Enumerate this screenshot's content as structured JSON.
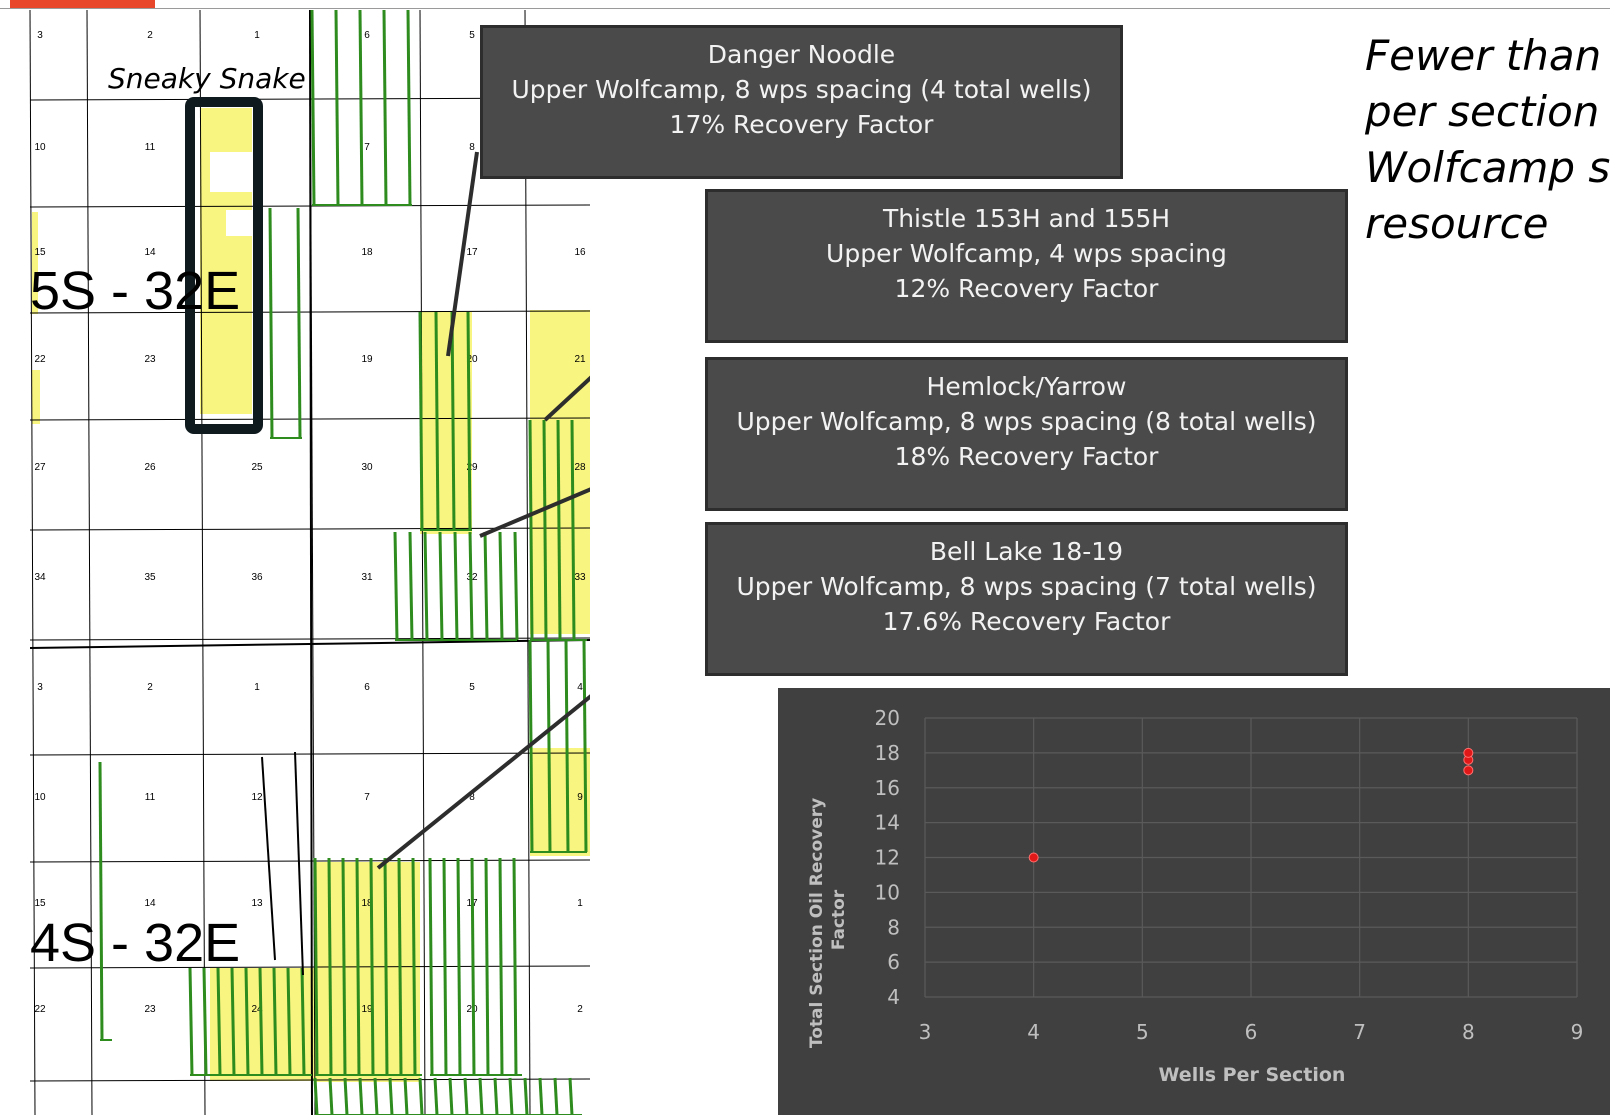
{
  "header": {
    "accent_color": "#e8472b"
  },
  "map": {
    "annotation_label": "Sneaky Snake",
    "township_upper": "5S - 32E",
    "township_lower": "4S - 32E",
    "section_numbers_upper": [
      "3",
      "2",
      "1",
      "6",
      "5",
      "10",
      "11",
      "7",
      "8",
      "15",
      "14",
      "18",
      "17",
      "16",
      "22",
      "23",
      "19",
      "20",
      "21",
      "27",
      "26",
      "25",
      "30",
      "29",
      "28",
      "34",
      "35",
      "36",
      "31",
      "32",
      "33"
    ],
    "section_numbers_lower": [
      "3",
      "2",
      "1",
      "6",
      "5",
      "4",
      "10",
      "11",
      "12",
      "7",
      "8",
      "9",
      "15",
      "14",
      "13",
      "18",
      "17",
      "1",
      "22",
      "23",
      "24",
      "19",
      "20",
      "2"
    ],
    "colors": {
      "well_line": "#2e8b1e",
      "highlight": "#f8f580",
      "highlight_box": "#0f1a1e"
    }
  },
  "callouts": [
    {
      "title": "Danger Noodle",
      "line2": "Upper Wolfcamp, 8 wps spacing (4 total wells)",
      "line3": "17% Recovery Factor"
    },
    {
      "title": "Thistle 153H and 155H",
      "line2": "Upper Wolfcamp, 4 wps spacing",
      "line3": "12% Recovery Factor"
    },
    {
      "title": "Hemlock/Yarrow",
      "line2": "Upper Wolfcamp, 8 wps spacing (8 total wells)",
      "line3": "18% Recovery Factor"
    },
    {
      "title": "Bell Lake 18-19",
      "line2": "Upper Wolfcamp, 8 wps spacing (7 total wells)",
      "line3": "17.6% Recovery Factor"
    }
  ],
  "headline": {
    "lines": [
      "Fewer than",
      "per section i",
      "Wolfcamp s",
      "resource"
    ]
  },
  "chart_data": {
    "type": "scatter",
    "title": "",
    "xlabel": "Wells Per Section",
    "ylabel": "Total Section Oil Recovery Factor",
    "xlim": [
      3,
      9
    ],
    "ylim": [
      4,
      20
    ],
    "xticks": [
      3,
      4,
      5,
      6,
      7,
      8,
      9
    ],
    "yticks": [
      4,
      6,
      8,
      10,
      12,
      14,
      16,
      18,
      20
    ],
    "grid": true,
    "points": [
      {
        "x": 4,
        "y": 12
      },
      {
        "x": 8,
        "y": 17
      },
      {
        "x": 8,
        "y": 17.6
      },
      {
        "x": 8,
        "y": 18
      }
    ],
    "colors": {
      "background": "#404040",
      "grid": "#5a5a5a",
      "point": "#e01818",
      "text": "#bfbfbf"
    }
  }
}
